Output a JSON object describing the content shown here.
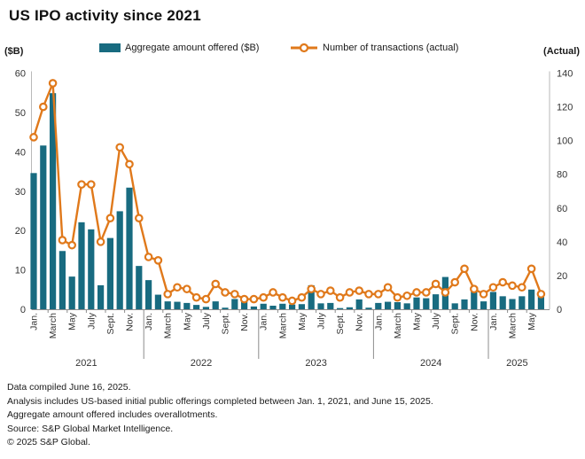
{
  "title": "US IPO activity since 2021",
  "left_axis_label": "($B)",
  "right_axis_label": "(Actual)",
  "legend": {
    "bars_label": "Aggregate amount offered ($B)",
    "line_label": "Number of transactions (actual)"
  },
  "colors": {
    "bar": "#186b80",
    "line": "#e0791b",
    "axis": "#8c8c8c",
    "tick_text": "#333333"
  },
  "footer": {
    "line1": "Data compiled June 16, 2025.",
    "line2": "Analysis includes US-based initial public offerings completed between Jan. 1, 2021, and June 15, 2025.",
    "line3": "Aggregate amount offered includes overallotments.",
    "line4": "Source: S&P Global Market Intelligence.",
    "line5": "© 2025 S&P Global."
  },
  "chart_data": {
    "type": "bar",
    "subtype": "bar-line-combo",
    "title": "US IPO activity since 2021",
    "categories": [
      "Jan 2021",
      "Feb 2021",
      "Mar 2021",
      "Apr 2021",
      "May 2021",
      "Jun 2021",
      "Jul 2021",
      "Aug 2021",
      "Sep 2021",
      "Oct 2021",
      "Nov 2021",
      "Dec 2021",
      "Jan 2022",
      "Feb 2022",
      "Mar 2022",
      "Apr 2022",
      "May 2022",
      "Jun 2022",
      "Jul 2022",
      "Aug 2022",
      "Sep 2022",
      "Oct 2022",
      "Nov 2022",
      "Dec 2022",
      "Jan 2023",
      "Feb 2023",
      "Mar 2023",
      "Apr 2023",
      "May 2023",
      "Jun 2023",
      "Jul 2023",
      "Aug 2023",
      "Sep 2023",
      "Oct 2023",
      "Nov 2023",
      "Dec 2023",
      "Jan 2024",
      "Feb 2024",
      "Mar 2024",
      "Apr 2024",
      "May 2024",
      "Jun 2024",
      "Jul 2024",
      "Aug 2024",
      "Sep 2024",
      "Oct 2024",
      "Nov 2024",
      "Dec 2024",
      "Jan 2025",
      "Feb 2025",
      "Mar 2025",
      "Apr 2025",
      "May 2025",
      "Jun 2025"
    ],
    "series": [
      {
        "name": "Aggregate amount offered ($B)",
        "type": "bar",
        "axis": "left",
        "values": [
          34.6,
          41.6,
          54.9,
          14.8,
          8.3,
          22.1,
          20.3,
          6.1,
          18.1,
          24.9,
          30.9,
          11.0,
          7.4,
          3.7,
          2.0,
          1.9,
          1.6,
          1.1,
          0.6,
          2.0,
          0.4,
          2.6,
          2.9,
          0.7,
          1.4,
          0.9,
          1.4,
          1.2,
          1.3,
          6.1,
          1.5,
          1.6,
          0.3,
          0.5,
          2.5,
          0.4,
          1.6,
          1.9,
          1.8,
          1.5,
          3.0,
          2.8,
          3.8,
          8.2,
          1.5,
          2.5,
          5.5,
          2.0,
          4.4,
          3.3,
          2.6,
          3.3,
          5.0,
          3.9
        ]
      },
      {
        "name": "Number of transactions (actual)",
        "type": "line",
        "axis": "right",
        "values": [
          102,
          120,
          134,
          41,
          38,
          74,
          74,
          40,
          54,
          96,
          86,
          54,
          31,
          29,
          9,
          13,
          12,
          7,
          6,
          15,
          10,
          9,
          6,
          6,
          7,
          10,
          7,
          5,
          7,
          12,
          9,
          11,
          7,
          10,
          11,
          9,
          9,
          13,
          7,
          8,
          10,
          10,
          15,
          10,
          16,
          24,
          12,
          9,
          13,
          16,
          14,
          13,
          24,
          9
        ]
      }
    ],
    "left_axis": {
      "label": "($B)",
      "min": 0,
      "max": 60,
      "ticks": [
        0,
        10,
        20,
        30,
        40,
        50,
        60
      ]
    },
    "right_axis": {
      "label": "(Actual)",
      "min": 0,
      "max": 140,
      "ticks": [
        0,
        20,
        40,
        60,
        80,
        100,
        120,
        140
      ]
    },
    "x_month_label_cycle": [
      "Jan.",
      "March",
      "May",
      "July",
      "Sept.",
      "Nov."
    ],
    "years": [
      {
        "label": "2021",
        "months": 12
      },
      {
        "label": "2022",
        "months": 12
      },
      {
        "label": "2023",
        "months": 12
      },
      {
        "label": "2024",
        "months": 12
      },
      {
        "label": "2025",
        "months": 6
      }
    ],
    "grid": false,
    "legend_position": "top"
  }
}
